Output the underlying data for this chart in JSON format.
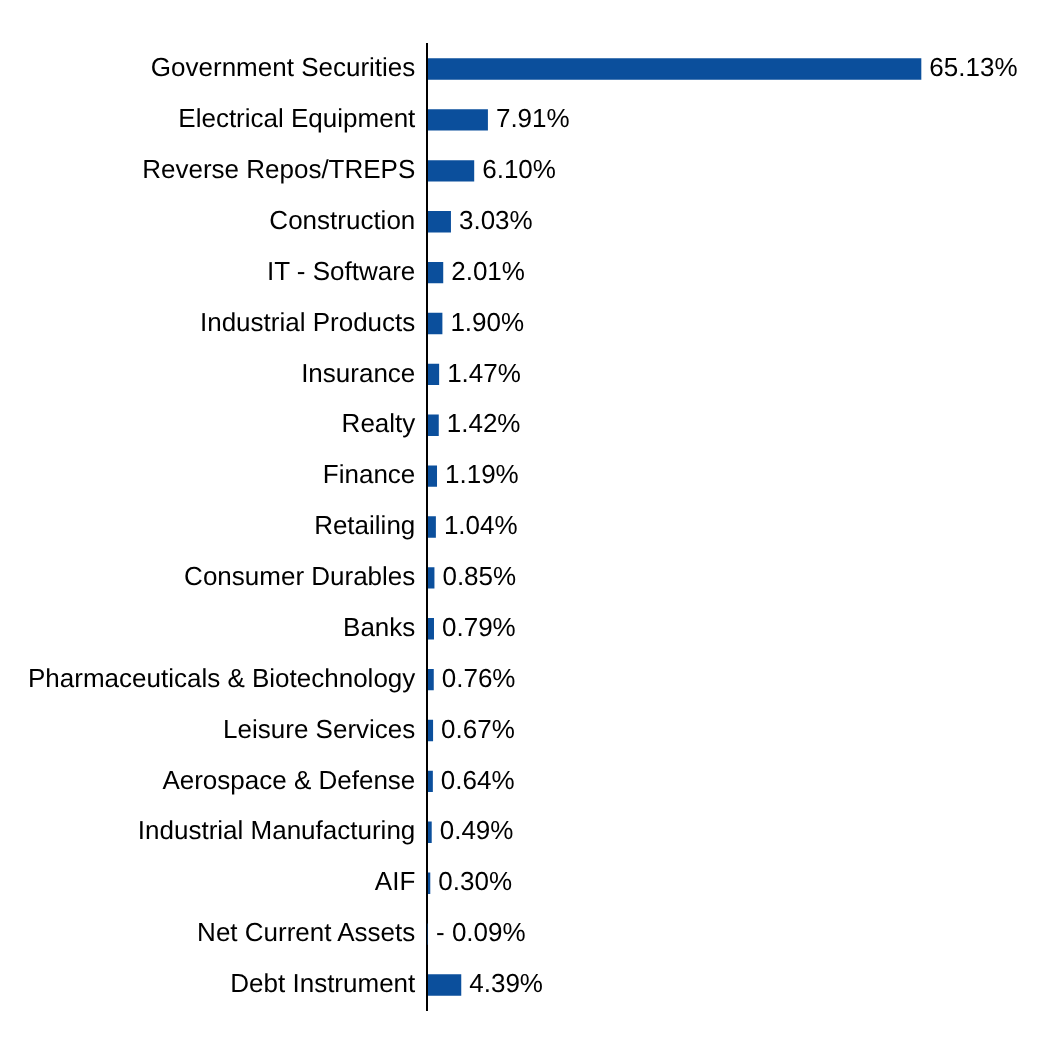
{
  "chart_data": {
    "type": "bar",
    "orientation": "horizontal",
    "categories": [
      "Government Securities",
      "Electrical Equipment",
      "Reverse Repos/TREPS",
      "Construction",
      "IT - Software",
      "Industrial Products",
      "Insurance",
      "Realty",
      "Finance",
      "Retailing",
      "Consumer Durables",
      "Banks",
      "Pharmaceuticals & Biotechnology",
      "Leisure Services",
      "Aerospace & Defense",
      "Industrial Manufacturing",
      "AIF",
      "Net Current Assets",
      "Debt Instrument"
    ],
    "values": [
      65.13,
      7.91,
      6.1,
      3.03,
      2.01,
      1.9,
      1.47,
      1.42,
      1.19,
      1.04,
      0.85,
      0.79,
      0.76,
      0.67,
      0.64,
      0.49,
      0.3,
      -0.09,
      4.39
    ],
    "value_labels": [
      "65.13%",
      "7.91%",
      "6.10%",
      "3.03%",
      "2.01%",
      "1.90%",
      "1.47%",
      "1.42%",
      "1.19%",
      "1.04%",
      "0.85%",
      "0.79%",
      "0.76%",
      "0.67%",
      "0.64%",
      "0.49%",
      "0.30%",
      "- 0.09%",
      "4.39%"
    ],
    "color": "#0b4f9c"
  }
}
